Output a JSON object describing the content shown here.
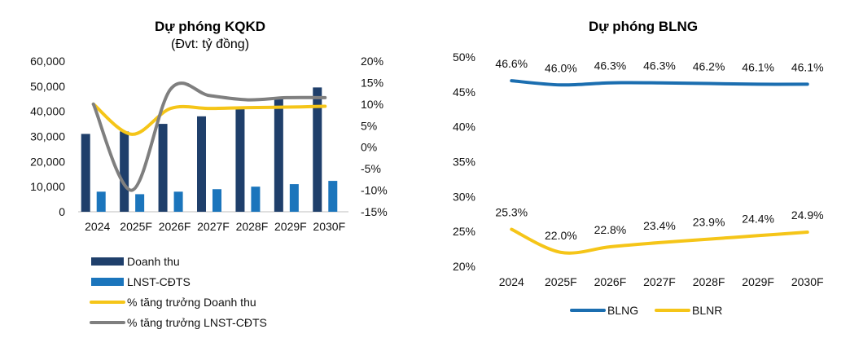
{
  "chart_data": [
    {
      "type": "bar+line",
      "title": "Dự phóng KQKD",
      "subtitle": "(Đvt: tỷ đồng)",
      "categories": [
        "2024",
        "2025F",
        "2026F",
        "2027F",
        "2028F",
        "2029F",
        "2030F"
      ],
      "y_left": {
        "lim": [
          0,
          60000
        ],
        "ticks": [
          0,
          10000,
          20000,
          30000,
          40000,
          50000,
          60000
        ],
        "tick_labels": [
          "0",
          "10,000",
          "20,000",
          "30,000",
          "40,000",
          "50,000",
          "60,000"
        ]
      },
      "y_right": {
        "lim": [
          -15,
          20
        ],
        "ticks": [
          -15,
          -10,
          -5,
          0,
          5,
          10,
          15,
          20
        ],
        "tick_labels": [
          "-15%",
          "-10%",
          "-5%",
          "0%",
          "5%",
          "10%",
          "15%",
          "20%"
        ]
      },
      "series": [
        {
          "name": "Doanh thu",
          "kind": "bar",
          "axis": "left",
          "color": "#1f3f6b",
          "values": [
            31000,
            32000,
            35000,
            38000,
            41500,
            45500,
            49500
          ]
        },
        {
          "name": "LNST-CĐTS",
          "kind": "bar",
          "axis": "left",
          "color": "#1b75bc",
          "values": [
            8000,
            7000,
            8000,
            9000,
            10000,
            11000,
            12300
          ]
        },
        {
          "name": "% tăng trưởng Doanh thu",
          "kind": "line",
          "axis": "right",
          "color": "#f5c518",
          "values": [
            10.0,
            3.0,
            9.0,
            9.0,
            9.2,
            9.3,
            9.5
          ]
        },
        {
          "name": "% tăng trưởng LNST-CĐTS",
          "kind": "line",
          "axis": "right",
          "color": "#7f7f7f",
          "values": [
            10.0,
            -10.0,
            13.5,
            12.0,
            11.0,
            11.5,
            11.5
          ]
        }
      ],
      "legend_position": "bottom-left",
      "grid": false
    },
    {
      "type": "line",
      "title": "Dự phóng BLNG",
      "categories": [
        "2024",
        "2025F",
        "2026F",
        "2027F",
        "2028F",
        "2029F",
        "2030F"
      ],
      "y": {
        "lim": [
          20,
          50
        ],
        "ticks": [
          20,
          25,
          30,
          35,
          40,
          45,
          50
        ],
        "tick_labels": [
          "20%",
          "25%",
          "30%",
          "35%",
          "40%",
          "45%",
          "50%"
        ]
      },
      "series": [
        {
          "name": "BLNG",
          "color": "#1b6eb0",
          "values": [
            46.6,
            46.0,
            46.3,
            46.3,
            46.2,
            46.1,
            46.1
          ],
          "labels": [
            "46.6%",
            "46.0%",
            "46.3%",
            "46.3%",
            "46.2%",
            "46.1%",
            "46.1%"
          ]
        },
        {
          "name": "BLNR",
          "color": "#f5c518",
          "values": [
            25.3,
            22.0,
            22.8,
            23.4,
            23.9,
            24.4,
            24.9
          ],
          "labels": [
            "25.3%",
            "22.0%",
            "22.8%",
            "23.4%",
            "23.9%",
            "24.4%",
            "24.9%"
          ]
        }
      ],
      "legend_position": "bottom",
      "grid": false
    }
  ]
}
